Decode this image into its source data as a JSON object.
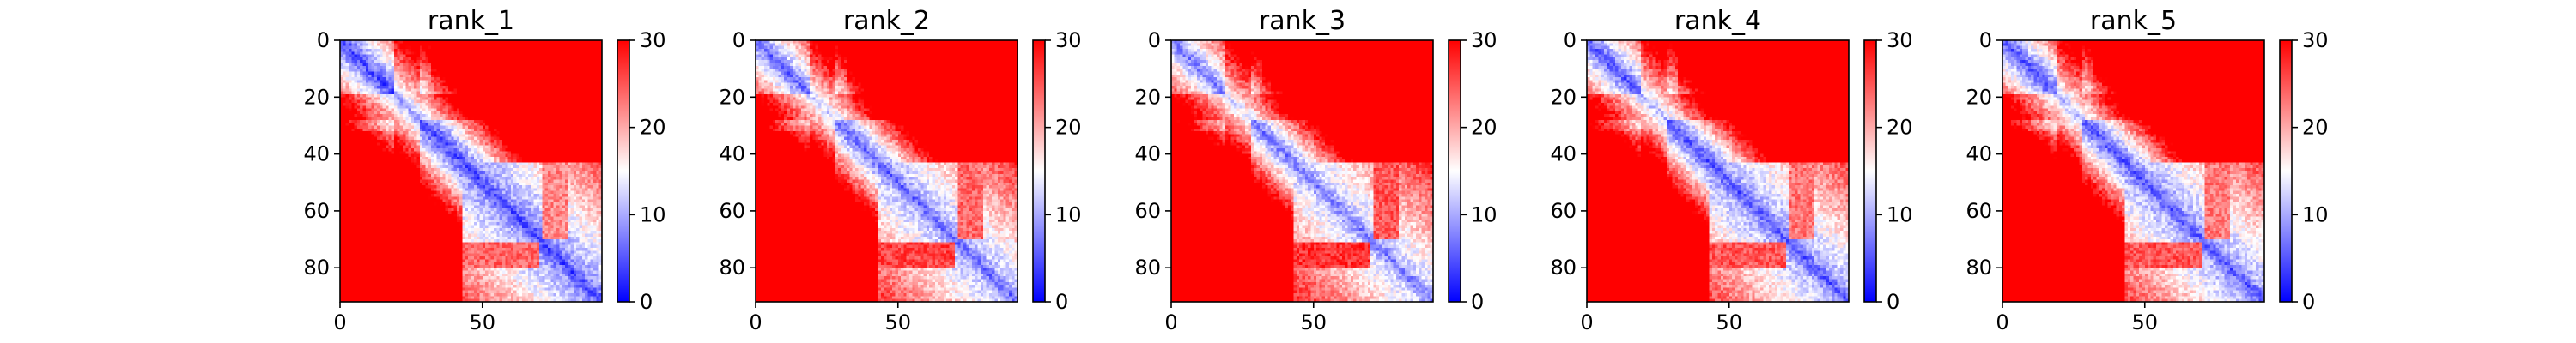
{
  "chart_data": [
    {
      "type": "heatmap",
      "title": "rank_1",
      "size": 92,
      "x_ticks": [
        0,
        50
      ],
      "y_ticks": [
        0,
        20,
        40,
        60,
        80
      ],
      "colorbar": {
        "min": 0,
        "max": 30,
        "ticks": [
          0,
          10,
          20,
          30
        ],
        "colors": [
          "#0000ff",
          "#ffffff",
          "#ff0000"
        ]
      }
    },
    {
      "type": "heatmap",
      "title": "rank_2",
      "size": 92,
      "x_ticks": [
        0,
        50
      ],
      "y_ticks": [
        0,
        20,
        40,
        60,
        80
      ],
      "colorbar": {
        "min": 0,
        "max": 30,
        "ticks": [
          0,
          10,
          20,
          30
        ],
        "colors": [
          "#0000ff",
          "#ffffff",
          "#ff0000"
        ]
      }
    },
    {
      "type": "heatmap",
      "title": "rank_3",
      "size": 92,
      "x_ticks": [
        0,
        50
      ],
      "y_ticks": [
        0,
        20,
        40,
        60,
        80
      ],
      "colorbar": {
        "min": 0,
        "max": 30,
        "ticks": [
          0,
          10,
          20,
          30
        ],
        "colors": [
          "#0000ff",
          "#ffffff",
          "#ff0000"
        ]
      }
    },
    {
      "type": "heatmap",
      "title": "rank_4",
      "size": 92,
      "x_ticks": [
        0,
        50
      ],
      "y_ticks": [
        0,
        20,
        40,
        60,
        80
      ],
      "colorbar": {
        "min": 0,
        "max": 30,
        "ticks": [
          0,
          10,
          20,
          30
        ],
        "colors": [
          "#0000ff",
          "#ffffff",
          "#ff0000"
        ]
      }
    },
    {
      "type": "heatmap",
      "title": "rank_5",
      "size": 92,
      "x_ticks": [
        0,
        50
      ],
      "y_ticks": [
        0,
        20,
        40,
        60,
        80
      ],
      "colorbar": {
        "min": 0,
        "max": 30,
        "ticks": [
          0,
          10,
          20,
          30
        ],
        "colors": [
          "#0000ff",
          "#ffffff",
          "#ff0000"
        ]
      }
    }
  ]
}
